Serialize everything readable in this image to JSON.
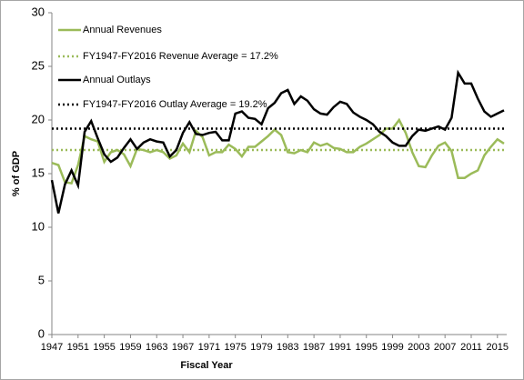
{
  "chart_data": {
    "type": "line",
    "x_label": "Fiscal Year",
    "y_label": "% of GDP",
    "x": [
      1947,
      1948,
      1949,
      1950,
      1951,
      1952,
      1953,
      1954,
      1955,
      1956,
      1957,
      1958,
      1959,
      1960,
      1961,
      1962,
      1963,
      1964,
      1965,
      1966,
      1967,
      1968,
      1969,
      1970,
      1971,
      1972,
      1973,
      1974,
      1975,
      1976,
      1977,
      1978,
      1979,
      1980,
      1981,
      1982,
      1983,
      1984,
      1985,
      1986,
      1987,
      1988,
      1989,
      1990,
      1991,
      1992,
      1993,
      1994,
      1995,
      1996,
      1997,
      1998,
      1999,
      2000,
      2001,
      2002,
      2003,
      2004,
      2005,
      2006,
      2007,
      2008,
      2009,
      2010,
      2011,
      2012,
      2013,
      2014,
      2015,
      2016
    ],
    "series": [
      {
        "name": "Annual Revenues",
        "color": "#9bbb59",
        "dashed": false,
        "values": [
          16.0,
          15.8,
          14.2,
          14.1,
          15.8,
          18.5,
          18.2,
          18.0,
          16.1,
          17.0,
          17.2,
          16.8,
          15.7,
          17.3,
          17.2,
          17.0,
          17.2,
          17.0,
          16.4,
          16.7,
          17.8,
          17.0,
          19.0,
          18.4,
          16.7,
          17.0,
          17.0,
          17.7,
          17.3,
          16.6,
          17.5,
          17.5,
          18.0,
          18.5,
          19.1,
          18.6,
          17.0,
          16.9,
          17.2,
          17.0,
          17.9,
          17.6,
          17.8,
          17.4,
          17.3,
          17.0,
          17.0,
          17.5,
          17.8,
          18.2,
          18.6,
          19.2,
          19.2,
          20.0,
          18.8,
          17.0,
          15.7,
          15.6,
          16.7,
          17.6,
          17.9,
          17.1,
          14.6,
          14.6,
          15.0,
          15.3,
          16.7,
          17.5,
          18.2,
          17.8
        ]
      },
      {
        "name": "FY1947-FY2016 Revenue Average = 17.2%",
        "color": "#9bbb59",
        "dashed": true,
        "value": 17.2
      },
      {
        "name": "Annual Outlays",
        "color": "#000000",
        "dashed": false,
        "values": [
          14.4,
          11.3,
          14.0,
          15.3,
          13.9,
          18.9,
          19.9,
          18.3,
          16.8,
          16.1,
          16.5,
          17.4,
          18.2,
          17.3,
          17.9,
          18.2,
          18.0,
          17.9,
          16.6,
          17.2,
          18.8,
          19.8,
          18.7,
          18.6,
          18.8,
          18.9,
          18.1,
          18.1,
          20.6,
          20.8,
          20.2,
          20.1,
          19.6,
          21.1,
          21.6,
          22.5,
          22.8,
          21.5,
          22.2,
          21.8,
          21.0,
          20.6,
          20.5,
          21.2,
          21.7,
          21.5,
          20.7,
          20.3,
          20.0,
          19.6,
          18.9,
          18.5,
          17.9,
          17.6,
          17.6,
          18.5,
          19.1,
          19.0,
          19.2,
          19.4,
          19.1,
          20.2,
          24.4,
          23.4,
          23.4,
          22.0,
          20.8,
          20.3,
          20.6,
          20.9
        ]
      },
      {
        "name": "FY1947-FY2016 Outlay Average = 19.2%",
        "color": "#000000",
        "dashed": true,
        "value": 19.2
      }
    ],
    "xlim": [
      1947,
      2016
    ],
    "xticks": [
      1947,
      1951,
      1955,
      1959,
      1963,
      1967,
      1971,
      1975,
      1979,
      1983,
      1987,
      1991,
      1995,
      1999,
      2003,
      2007,
      2011,
      2015
    ],
    "ylim": [
      0,
      30
    ],
    "yticks": [
      0,
      5,
      10,
      15,
      20,
      25,
      30
    ],
    "grid": false,
    "legend": "upper left"
  }
}
